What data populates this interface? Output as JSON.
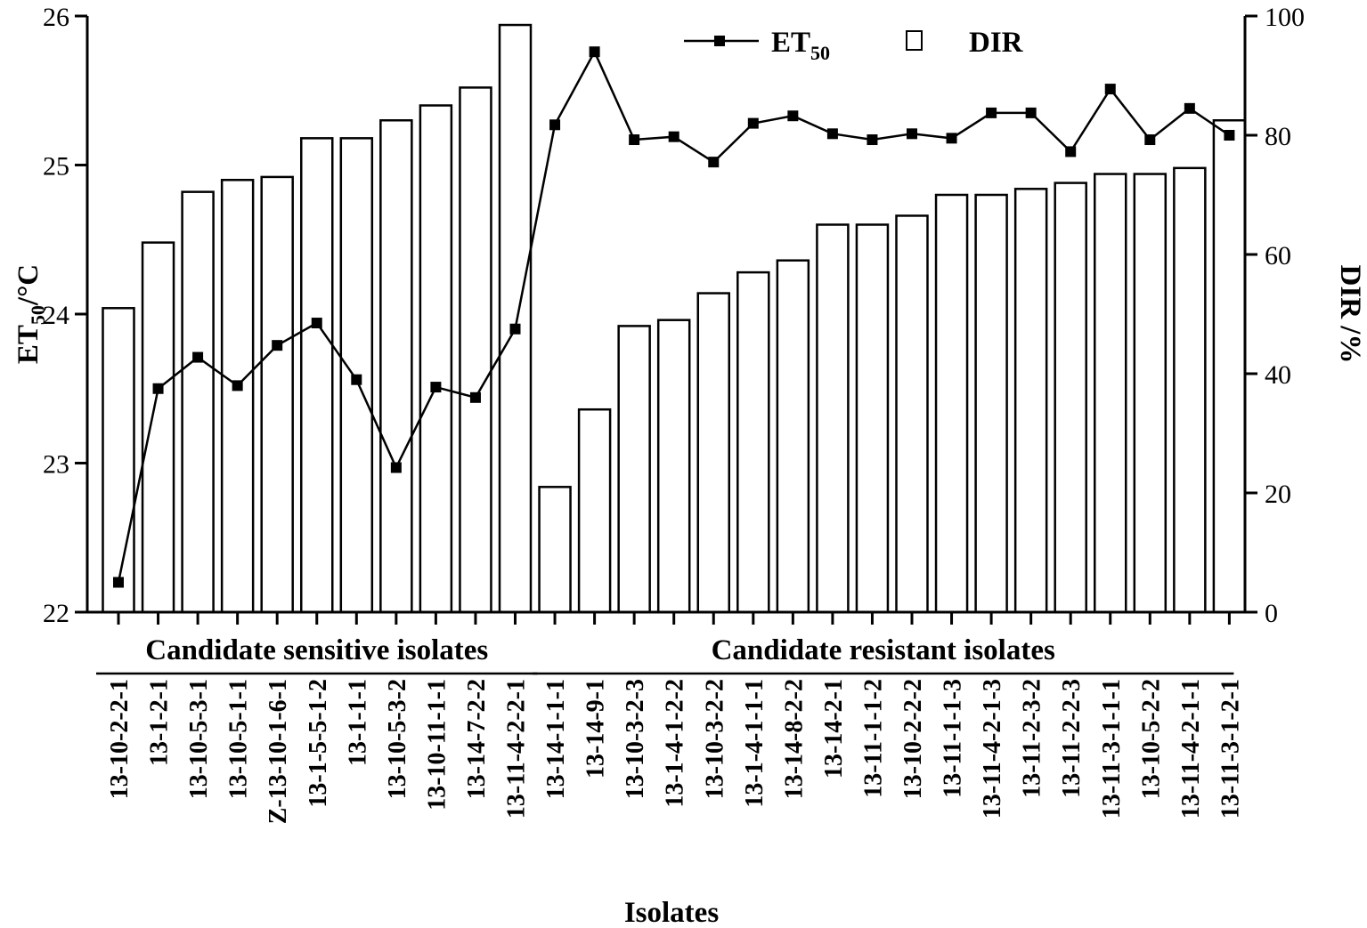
{
  "chart_data": {
    "type": "bar",
    "xlabel": "Isolates",
    "ylabel_left": "ET",
    "ylabel_left_sub": "50",
    "ylabel_left_unit": "/°C",
    "ylabel_right": "DIR /%",
    "ylim_left": [
      22,
      26
    ],
    "yticks_left": [
      "22",
      "23",
      "24",
      "25",
      "26"
    ],
    "ylim_right": [
      0,
      100
    ],
    "yticks_right": [
      "0",
      "20",
      "40",
      "60",
      "80",
      "100"
    ],
    "legend_placement": "top-center",
    "legend": [
      {
        "name": "ET",
        "sub": "50",
        "marker": "line-square"
      },
      {
        "name": "DIR",
        "marker": "open-square"
      }
    ],
    "groups": [
      {
        "label": "Candidate sensitive isolates",
        "start": 0,
        "end": 10
      },
      {
        "label": "Candidate resistant isolates",
        "start": 11,
        "end": 28
      }
    ],
    "categories": [
      "13-10-2-2-1",
      "13-1-2-1",
      "13-10-5-3-1",
      "13-10-5-1-1",
      "Z-13-10-1-6-1",
      "13-1-5-5-1-2",
      "13-1-1-1",
      "13-10-5-3-2",
      "13-10-11-1-1",
      "13-14-7-2-2",
      "13-11-4-2-2-1",
      "13-14-1-1-1",
      "13-14-9-1",
      "13-10-3-2-3",
      "13-1-4-1-2-2",
      "13-10-3-2-2",
      "13-1-4-1-1-1",
      "13-14-8-2-2",
      "13-14-2-1",
      "13-11-1-1-2",
      "13-10-2-2-2",
      "13-11-1-1-3",
      "13-11-4-2-1-3",
      "13-11-2-3-2",
      "13-11-2-2-3",
      "13-11-3-1-1-1",
      "13-10-5-2-2",
      "13-11-4-2-1-1",
      "13-11-3-1-2-1"
    ],
    "series": [
      {
        "name": "DIR",
        "type": "bar",
        "axis": "right",
        "values": [
          51,
          62,
          70.5,
          72.5,
          73,
          79.5,
          79.5,
          82.5,
          85,
          88,
          98.5,
          21,
          34,
          48,
          49,
          53.5,
          57,
          59,
          65,
          65,
          66.5,
          70,
          70,
          71,
          72,
          73.5,
          73.5,
          74.5,
          82.5
        ]
      },
      {
        "name": "ET50",
        "type": "line",
        "axis": "left",
        "values": [
          22.2,
          23.5,
          23.71,
          23.52,
          23.79,
          23.94,
          23.56,
          22.97,
          23.51,
          23.44,
          23.9,
          25.27,
          25.76,
          25.17,
          25.19,
          25.02,
          25.28,
          25.33,
          25.21,
          25.17,
          25.21,
          25.18,
          25.35,
          25.35,
          25.09,
          25.51,
          25.17,
          25.38,
          25.2
        ]
      }
    ]
  }
}
